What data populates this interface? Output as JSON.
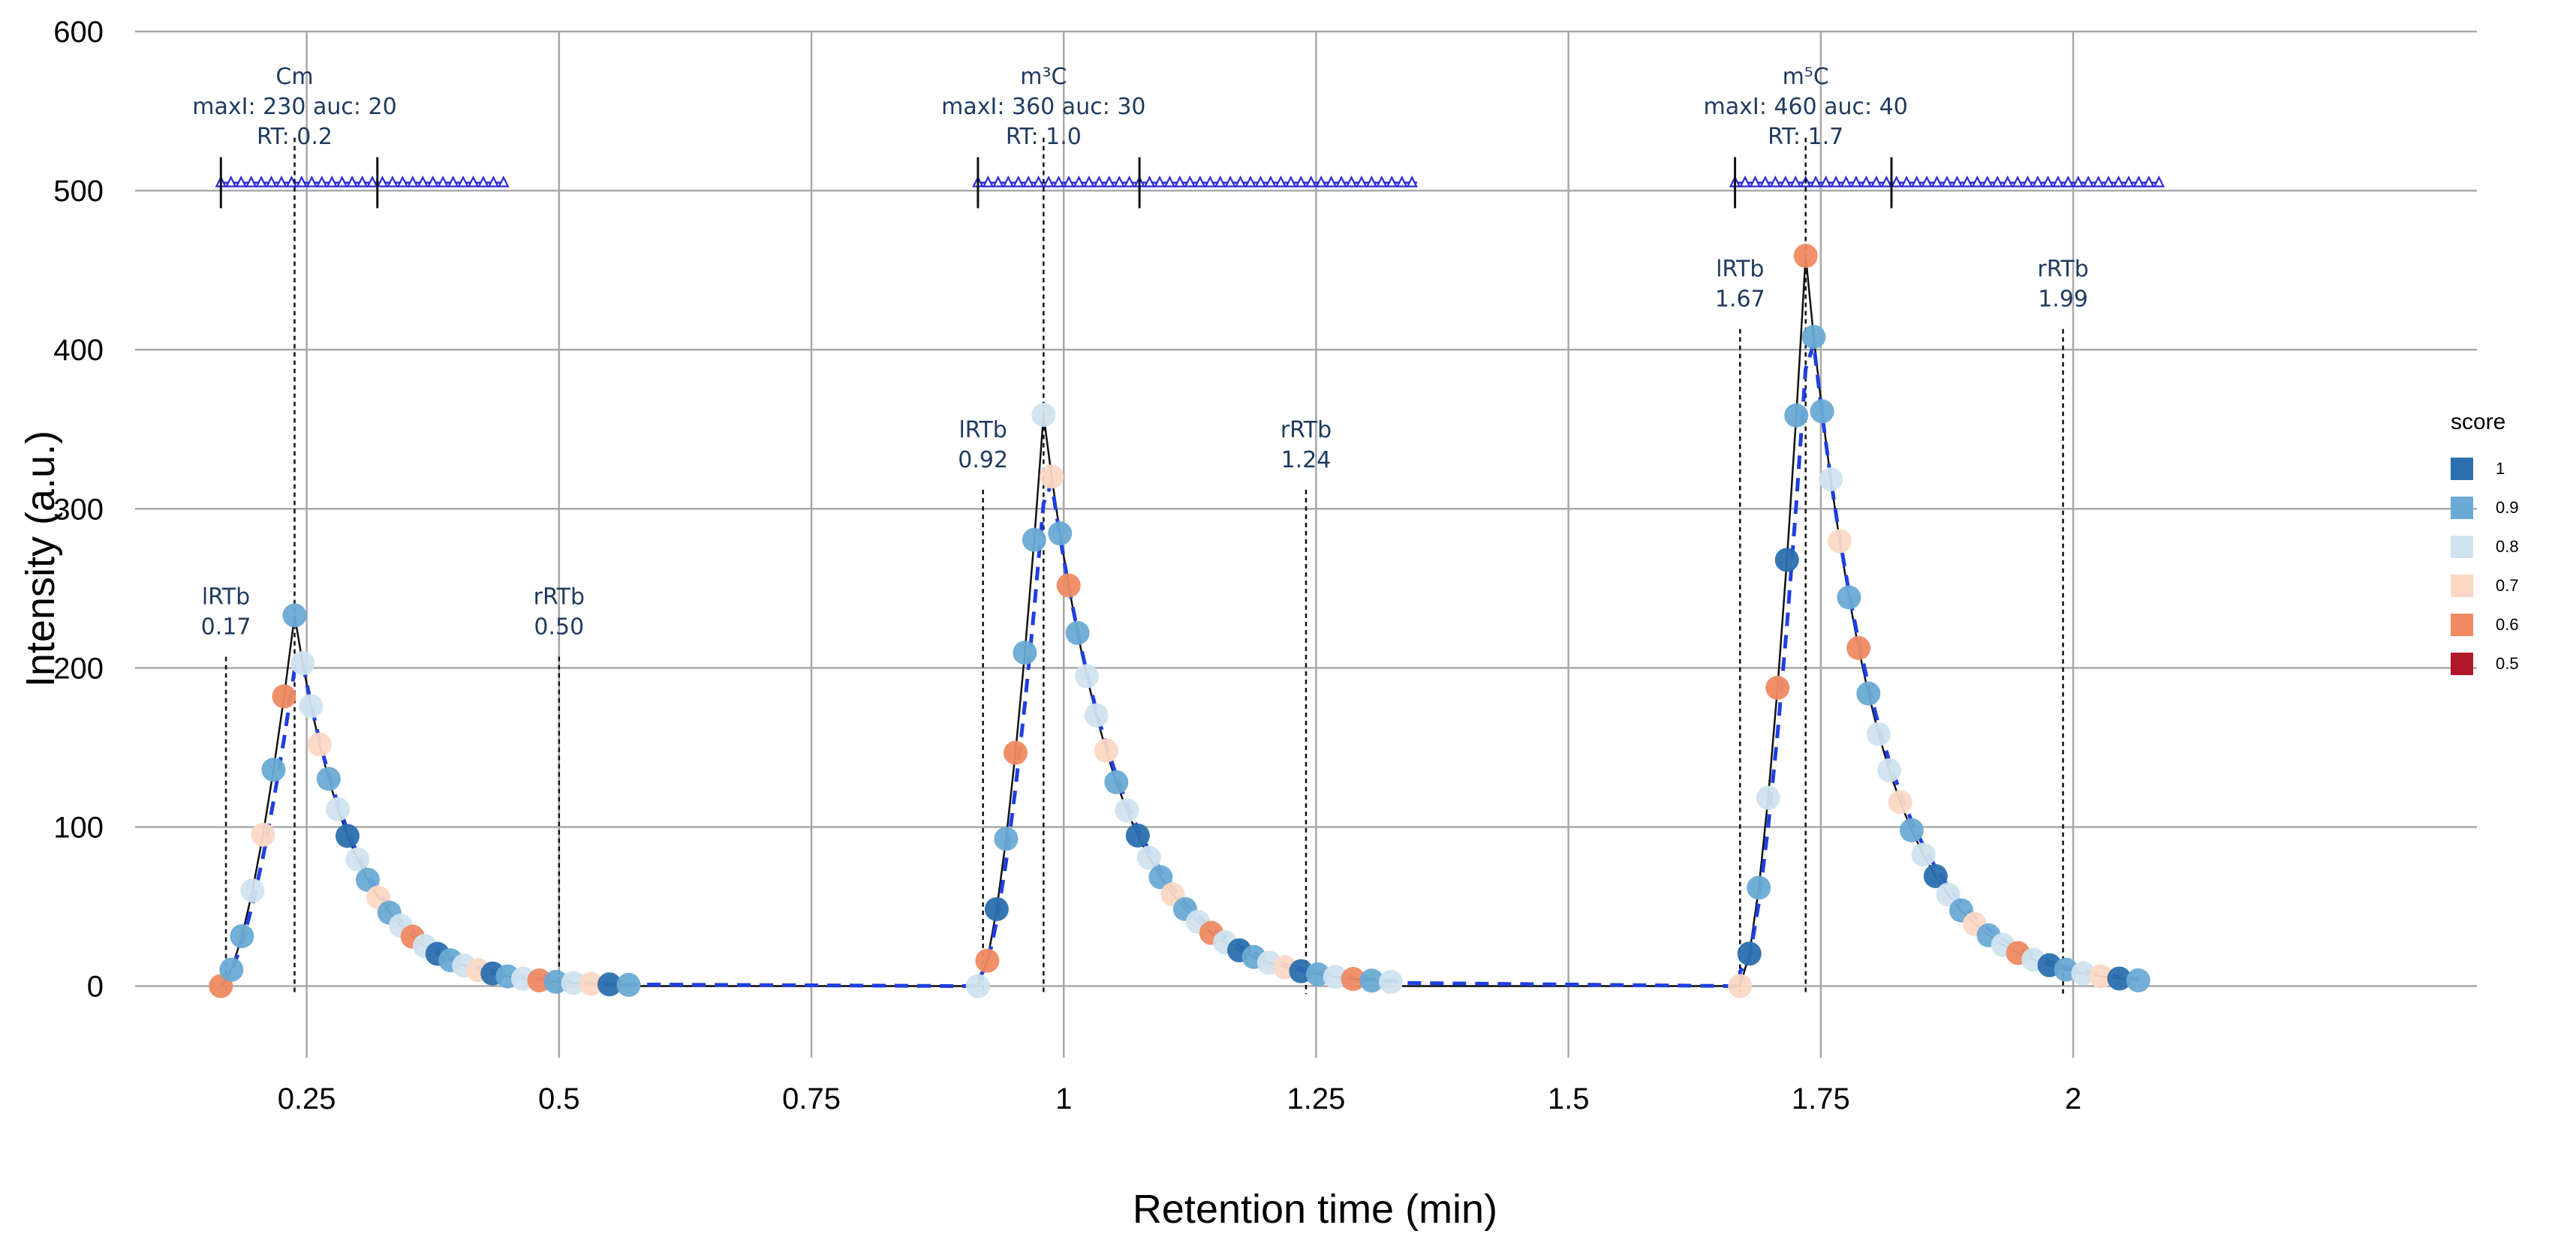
{
  "chart_data": {
    "type": "scatter",
    "xlabel": "Retention time (min)",
    "ylabel": "Intensity (a.u.)",
    "xlim": [
      0.08,
      2.4
    ],
    "ylim": [
      -45,
      600
    ],
    "xticks": [
      0.25,
      0.5,
      0.75,
      1,
      1.25,
      1.5,
      1.75,
      2
    ],
    "xtick_labels": [
      "0.25",
      "0.5",
      "0.75",
      "1",
      "1.25",
      "1.5",
      "1.75",
      "2"
    ],
    "yticks": [
      0,
      100,
      200,
      300,
      400,
      500,
      600
    ],
    "ytick_labels": [
      "0",
      "100",
      "200",
      "300",
      "400",
      "500",
      "600"
    ],
    "grid": true,
    "legend": {
      "title": "score",
      "placement": "right",
      "entries": [
        {
          "label": "1",
          "color": "#2b6fae"
        },
        {
          "label": "0.9",
          "color": "#6aaad4"
        },
        {
          "label": "0.8",
          "color": "#cfe3ef"
        },
        {
          "label": "0.7",
          "color": "#fbd8c4"
        },
        {
          "label": "0.6",
          "color": "#ef8a62"
        },
        {
          "label": "0.5",
          "color": "#b2182b"
        }
      ]
    },
    "peaks": [
      {
        "start": 0.165,
        "rt": 0.238,
        "end": 0.58,
        "tail": 0.058,
        "max": 233,
        "lrtb": 0.17,
        "rrtb": 0.5,
        "name_label": "Cm",
        "maxi_label": "maxI: 230 auc: 20",
        "rt_label": "RT: 0.2",
        "lrtb_label": "lRTb",
        "lrtb_value": "0.17",
        "rrtb_label": "rRTb",
        "rrtb_value": "0.50",
        "window": [
          0.165,
          0.32
        ],
        "window_end": 0.445
      },
      {
        "start": 0.915,
        "rt": 0.98,
        "end": 1.335,
        "tail": 0.07,
        "max": 359,
        "lrtb": 0.92,
        "rrtb": 1.24,
        "name_label": "m³C",
        "maxi_label": "maxI: 360 auc: 30",
        "rt_label": "RT: 1.0",
        "lrtb_label": "lRTb",
        "lrtb_value": "0.92",
        "rrtb_label": "rRTb",
        "rrtb_value": "1.24",
        "window": [
          0.915,
          1.075
        ],
        "window_end": 1.35
      },
      {
        "start": 1.67,
        "rt": 1.735,
        "end": 2.08,
        "tail": 0.068,
        "max": 459,
        "lrtb": 1.67,
        "rrtb": 1.99,
        "name_label": "m⁵C",
        "maxi_label": "maxI: 460 auc: 40",
        "rt_label": "RT: 1.7",
        "lrtb_label": "lRTb",
        "lrtb_value": "1.67",
        "rrtb_label": "rRTb",
        "rrtb_value": "1.99",
        "window": [
          1.665,
          1.82
        ],
        "window_end": 2.085
      }
    ],
    "fitted_gap_points": [
      [
        0.58,
        1
      ],
      [
        0.915,
        4
      ],
      [
        1.335,
        2
      ],
      [
        1.67,
        9
      ]
    ],
    "annotation_marker_level": 505,
    "score_sequence": [
      0.6,
      0.9,
      0.9,
      0.8,
      0.7,
      0.9,
      0.6,
      0.9,
      0.8,
      0.8,
      0.7,
      0.9,
      0.8,
      1,
      0.8,
      0.9,
      0.7,
      0.9,
      0.8,
      0.6,
      0.8,
      1,
      0.9,
      0.8,
      0.7,
      1,
      0.9,
      0.8,
      0.6,
      0.9,
      0.8,
      0.7,
      1,
      0.9,
      0.8,
      0.6,
      1,
      0.9
    ]
  }
}
